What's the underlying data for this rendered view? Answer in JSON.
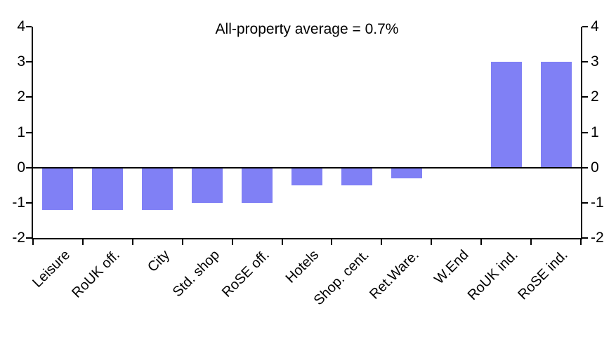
{
  "chart_data": {
    "type": "bar",
    "title": "All-property average = 0.7%",
    "categories": [
      "Leisure",
      "RoUK off.",
      "City",
      "Std. shop",
      "RoSE off.",
      "Hotels",
      "Shop. cent.",
      "Ret.Ware.",
      "W.End",
      "RoUK ind.",
      "RoSE ind."
    ],
    "values": [
      -1.2,
      -1.2,
      -1.2,
      -1.0,
      -1.0,
      -0.5,
      -0.5,
      -0.3,
      0.0,
      3.0,
      3.0
    ],
    "xlabel": "",
    "ylabel": "",
    "ylim": [
      -2,
      4
    ],
    "y_ticks": [
      4,
      3,
      2,
      1,
      0,
      -1,
      -2
    ],
    "y_tick_labels": [
      "4",
      "3",
      "2",
      "1",
      "0",
      "-1",
      "-2"
    ],
    "dual_y_axis": true,
    "grid": false,
    "legend": "none",
    "bar_color": "#8080f5",
    "axis_color": "#000000",
    "background_color": "#ffffff"
  }
}
